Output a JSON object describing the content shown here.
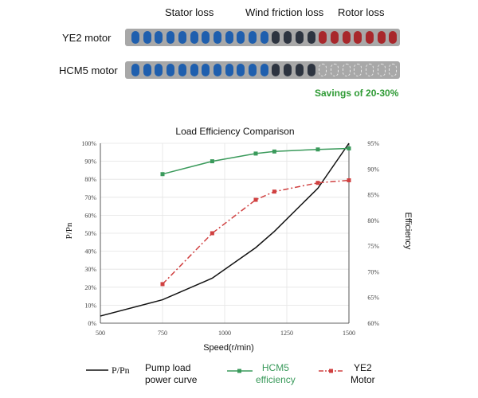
{
  "header": {
    "stator_loss": "Stator loss",
    "wind_friction_loss": "Wind friction loss",
    "rotor_loss": "Rotor loss"
  },
  "motors": [
    {
      "label": "YE2 motor",
      "segments": [
        "blue",
        "blue",
        "blue",
        "blue",
        "blue",
        "blue",
        "blue",
        "blue",
        "blue",
        "blue",
        "blue",
        "blue",
        "dark",
        "dark",
        "dark",
        "dark",
        "red",
        "red",
        "red",
        "red",
        "red",
        "red",
        "red"
      ]
    },
    {
      "label": "HCM5 motor",
      "segments": [
        "blue",
        "blue",
        "blue",
        "blue",
        "blue",
        "blue",
        "blue",
        "blue",
        "blue",
        "blue",
        "blue",
        "blue",
        "dark",
        "dark",
        "dark",
        "dark",
        "empty",
        "empty",
        "empty",
        "empty",
        "empty",
        "empty",
        "empty"
      ]
    }
  ],
  "savings": "Savings of 20-30%",
  "colors": {
    "blue": "#1f5fae",
    "dark": "#2d3440",
    "red": "#a8272b",
    "green": "#3a9a5b",
    "redline": "#d04040",
    "black": "#111111"
  },
  "legend": {
    "pp_symbol": "P/Pn",
    "pump_label_line1": "Pump load",
    "pump_label_line2": "power curve",
    "hcm5_line1": "HCM5",
    "hcm5_line2": "efficiency",
    "ye2_line1": "YE2",
    "ye2_line2": "Motor"
  },
  "chart_data": {
    "type": "line",
    "title": "Load Efficiency Comparison",
    "xlabel": "Speed(r/min)",
    "ylabel_left": "P/Pn",
    "ylabel_right": "Efficiency",
    "xlim": [
      500,
      1500
    ],
    "ylim_left": [
      0,
      100
    ],
    "ylim_right": [
      60,
      95
    ],
    "x_ticks": [
      "500",
      "750",
      "1000",
      "1250",
      "1500"
    ],
    "x_tick_values": [
      500,
      750,
      1000,
      1250,
      1500
    ],
    "left_ticks": [
      "0%",
      "10%",
      "20%",
      "30%",
      "40%",
      "50%",
      "60%",
      "70%",
      "80%",
      "90%",
      "100%"
    ],
    "left_tick_values": [
      0,
      10,
      20,
      30,
      40,
      50,
      60,
      70,
      80,
      90,
      100
    ],
    "right_ticks": [
      "60%",
      "65%",
      "70%",
      "75%",
      "80%",
      "85%",
      "90%",
      "95%"
    ],
    "right_tick_values": [
      60,
      65,
      70,
      75,
      80,
      85,
      90,
      95
    ],
    "series": [
      {
        "name": "P/Pn Pump load power curve",
        "axis": "left",
        "style": "solid",
        "x": [
          500,
          750,
          950,
          1125,
          1200,
          1375,
          1500
        ],
        "y": [
          4,
          13,
          25,
          42,
          51,
          75,
          100
        ]
      },
      {
        "name": "HCM5 efficiency",
        "axis": "right",
        "style": "solid-square",
        "x": [
          750,
          950,
          1125,
          1200,
          1375,
          1500
        ],
        "y": [
          89,
          91.5,
          93,
          93.4,
          93.8,
          94
        ]
      },
      {
        "name": "YE2 Motor",
        "axis": "right",
        "style": "dashdot-square",
        "x": [
          750,
          950,
          1125,
          1200,
          1375,
          1500
        ],
        "y": [
          67.6,
          77.5,
          84,
          85.6,
          87.3,
          87.8
        ]
      }
    ]
  }
}
